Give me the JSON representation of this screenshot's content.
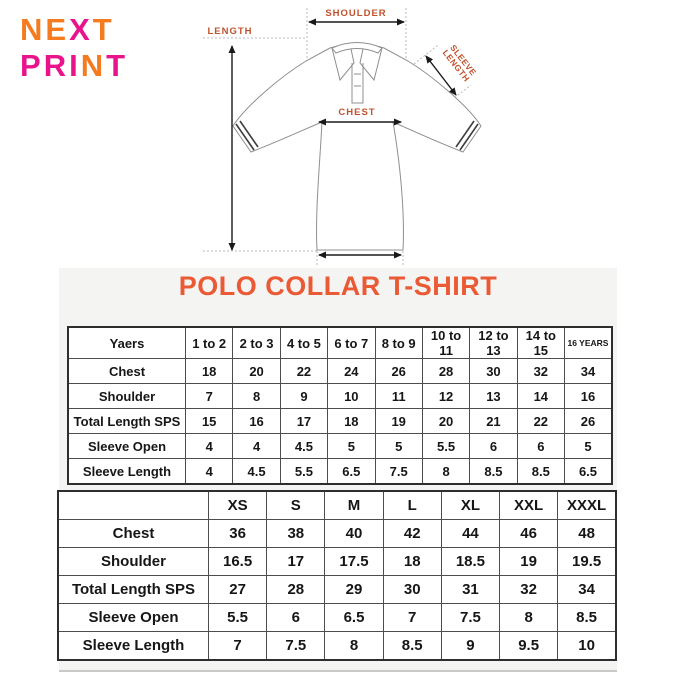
{
  "colors": {
    "logo_orange": "#f47b20",
    "logo_pink": "#e9148b",
    "diagram_label": "#c0522d",
    "title_orange": "#e95a35",
    "panel_bg": "#f4f4f2"
  },
  "logo": {
    "lines": [
      {
        "name": "logo-word-next",
        "letters": [
          {
            "t": "N",
            "c": "#f47b20"
          },
          {
            "t": "E",
            "c": "#f47b20"
          },
          {
            "t": "X",
            "c": "#e9148b"
          },
          {
            "t": "T",
            "c": "#f47b20"
          }
        ]
      },
      {
        "name": "logo-word-print",
        "letters": [
          {
            "t": "P",
            "c": "#e9148b"
          },
          {
            "t": "R",
            "c": "#e9148b"
          },
          {
            "t": "I",
            "c": "#e9148b"
          },
          {
            "t": "N",
            "c": "#f47b20"
          },
          {
            "t": "T",
            "c": "#e9148b"
          }
        ]
      }
    ]
  },
  "diagram": {
    "shoulder_label": "SHOULDER",
    "length_label": "LENGTH",
    "chest_label": "CHEST",
    "sleeve_label_line1": "SLEEVE",
    "sleeve_label_line2": "LENGTH"
  },
  "main": {
    "title": "POLO COLLAR T-SHIRT"
  },
  "kids_table": {
    "header": [
      "Yaers",
      "1 to 2",
      "2 to 3",
      "4 to 5",
      "6 to 7",
      "8 to 9",
      "10 to 11",
      "12 to 13",
      "14 to 15",
      "16 YEARS"
    ],
    "last_header_small": true,
    "rows": [
      [
        "Chest",
        "18",
        "20",
        "22",
        "24",
        "26",
        "28",
        "30",
        "32",
        "34"
      ],
      [
        "Shoulder",
        "7",
        "8",
        "9",
        "10",
        "11",
        "12",
        "13",
        "14",
        "16"
      ],
      [
        "Total Length SPS",
        "15",
        "16",
        "17",
        "18",
        "19",
        "20",
        "21",
        "22",
        "26"
      ],
      [
        "Sleeve Open",
        "4",
        "4",
        "4.5",
        "5",
        "5",
        "5.5",
        "6",
        "6",
        "5"
      ],
      [
        "Sleeve Length",
        "4",
        "4.5",
        "5.5",
        "6.5",
        "7.5",
        "8",
        "8.5",
        "8.5",
        "6.5"
      ]
    ]
  },
  "adult_table": {
    "header": [
      "",
      "XS",
      "S",
      "M",
      "L",
      "XL",
      "XXL",
      "XXXL"
    ],
    "last_header_small": false,
    "rows": [
      [
        "Chest",
        "36",
        "38",
        "40",
        "42",
        "44",
        "46",
        "48"
      ],
      [
        "Shoulder",
        "16.5",
        "17",
        "17.5",
        "18",
        "18.5",
        "19",
        "19.5"
      ],
      [
        "Total Length SPS",
        "27",
        "28",
        "29",
        "30",
        "31",
        "32",
        "34"
      ],
      [
        "Sleeve Open",
        "5.5",
        "6",
        "6.5",
        "7",
        "7.5",
        "8",
        "8.5"
      ],
      [
        "Sleeve Length",
        "7",
        "7.5",
        "8",
        "8.5",
        "9",
        "9.5",
        "10"
      ]
    ]
  },
  "chart_data": [
    {
      "type": "table",
      "title": "POLO COLLAR T-SHIRT - kids sizes (inches)",
      "categories": [
        "1 to 2",
        "2 to 3",
        "4 to 5",
        "6 to 7",
        "8 to 9",
        "10 to 11",
        "12 to 13",
        "14 to 15",
        "16 YEARS"
      ],
      "series": [
        {
          "name": "Chest",
          "values": [
            18,
            20,
            22,
            24,
            26,
            28,
            30,
            32,
            34
          ]
        },
        {
          "name": "Shoulder",
          "values": [
            7,
            8,
            9,
            10,
            11,
            12,
            13,
            14,
            16
          ]
        },
        {
          "name": "Total Length SPS",
          "values": [
            15,
            16,
            17,
            18,
            19,
            20,
            21,
            22,
            26
          ]
        },
        {
          "name": "Sleeve Open",
          "values": [
            4,
            4,
            4.5,
            5,
            5,
            5.5,
            6,
            6,
            5
          ]
        },
        {
          "name": "Sleeve Length",
          "values": [
            4,
            4.5,
            5.5,
            6.5,
            7.5,
            8,
            8.5,
            8.5,
            6.5
          ]
        }
      ]
    },
    {
      "type": "table",
      "title": "POLO COLLAR T-SHIRT - adult sizes (inches)",
      "categories": [
        "XS",
        "S",
        "M",
        "L",
        "XL",
        "XXL",
        "XXXL"
      ],
      "series": [
        {
          "name": "Chest",
          "values": [
            36,
            38,
            40,
            42,
            44,
            46,
            48
          ]
        },
        {
          "name": "Shoulder",
          "values": [
            16.5,
            17,
            17.5,
            18,
            18.5,
            19,
            19.5
          ]
        },
        {
          "name": "Total Length SPS",
          "values": [
            27,
            28,
            29,
            30,
            31,
            32,
            34
          ]
        },
        {
          "name": "Sleeve Open",
          "values": [
            5.5,
            6,
            6.5,
            7,
            7.5,
            8,
            8.5
          ]
        },
        {
          "name": "Sleeve Length",
          "values": [
            7,
            7.5,
            8,
            8.5,
            9,
            9.5,
            10
          ]
        }
      ]
    }
  ]
}
